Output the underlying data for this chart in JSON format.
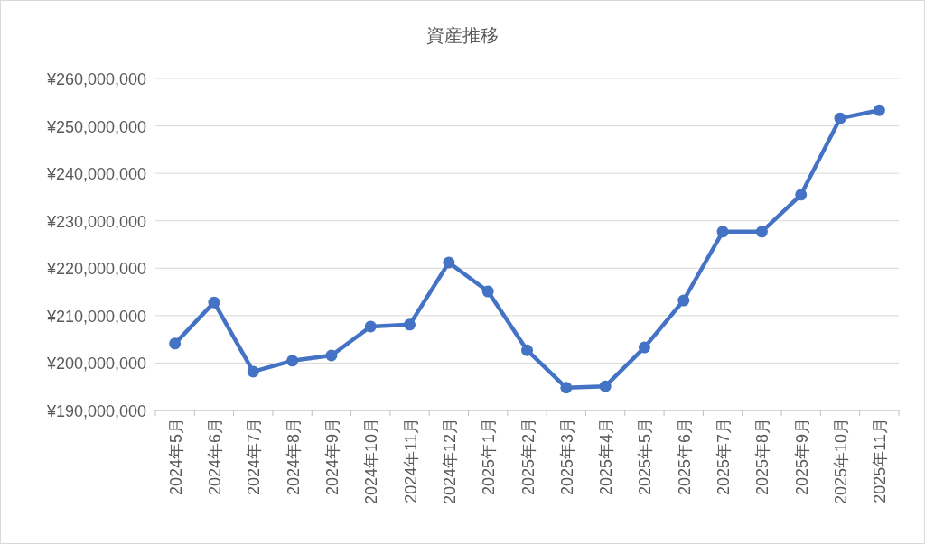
{
  "chart_data": {
    "type": "line",
    "title": "資産推移",
    "categories": [
      "2024年5月",
      "2024年6月",
      "2024年7月",
      "2024年8月",
      "2024年9月",
      "2024年10月",
      "2024年11月",
      "2024年12月",
      "2025年1月",
      "2025年2月",
      "2025年3月",
      "2025年4月",
      "2025年5月",
      "2025年6月",
      "2025年7月",
      "2025年8月",
      "2025年9月",
      "2025年10月",
      "2025年11月"
    ],
    "values": [
      204100000,
      212800000,
      198200000,
      200500000,
      201600000,
      207700000,
      208100000,
      221200000,
      215100000,
      202700000,
      194800000,
      195100000,
      203300000,
      213200000,
      227700000,
      227700000,
      235500000,
      251600000,
      253300000
    ],
    "color": "#4472c4",
    "marker": "circle",
    "line_style": "solid",
    "grid": "y",
    "ylim": [
      190000000,
      260000000
    ],
    "yticks": [
      {
        "value": 190000000,
        "label": "¥190,000,000"
      },
      {
        "value": 200000000,
        "label": "¥200,000,000"
      },
      {
        "value": 210000000,
        "label": "¥210,000,000"
      },
      {
        "value": 220000000,
        "label": "¥220,000,000"
      },
      {
        "value": 230000000,
        "label": "¥230,000,000"
      },
      {
        "value": 240000000,
        "label": "¥240,000,000"
      },
      {
        "value": 250000000,
        "label": "¥250,000,000"
      },
      {
        "value": 260000000,
        "label": "¥260,000,000"
      }
    ]
  }
}
